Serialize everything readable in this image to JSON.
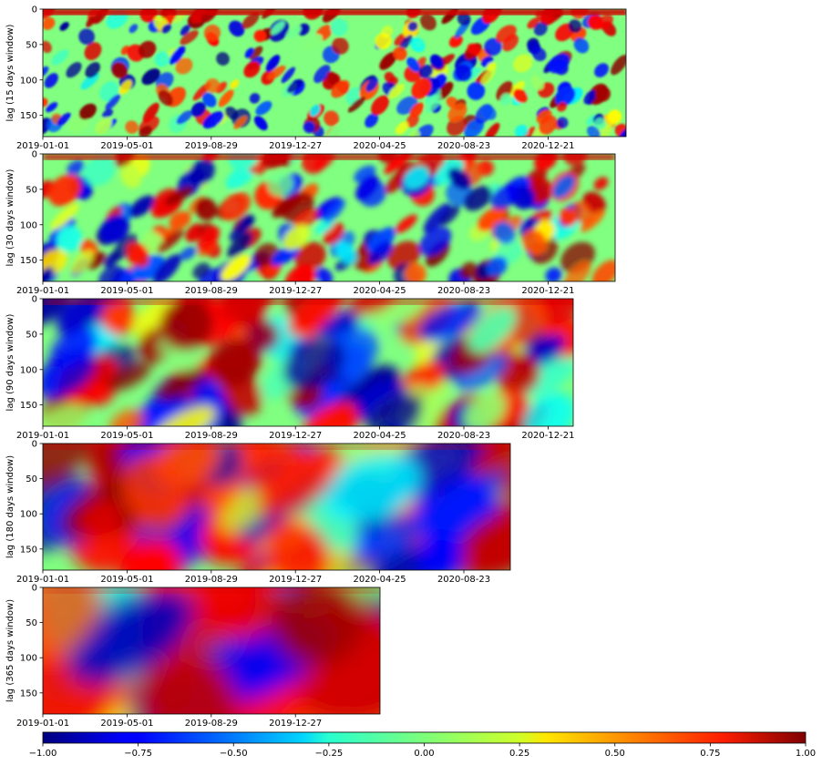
{
  "chart_data": [
    {
      "type": "heatmap",
      "ylabel": "lag (15 days window)",
      "y_ticks": [
        0,
        50,
        100,
        150
      ],
      "ylim": [
        180,
        0
      ],
      "x_tick_labels": [
        "2019-01-01",
        "2019-05-01",
        "2019-08-29",
        "2019-12-27",
        "2020-04-25",
        "2020-08-23",
        "2020-12-21"
      ],
      "xlim": [
        "2019-01-01",
        "2021-04-11"
      ],
      "window_days": 15,
      "colormap": "jet",
      "value_range": [
        -1.0,
        1.0
      ]
    },
    {
      "type": "heatmap",
      "ylabel": "lag (30 days window)",
      "y_ticks": [
        0,
        50,
        100,
        150
      ],
      "ylim": [
        180,
        0
      ],
      "x_tick_labels": [
        "2019-01-01",
        "2019-05-01",
        "2019-08-29",
        "2019-12-27",
        "2020-04-25",
        "2020-08-23",
        "2020-12-21"
      ],
      "xlim": [
        "2019-01-01",
        "2021-03-27"
      ],
      "window_days": 30,
      "colormap": "jet",
      "value_range": [
        -1.0,
        1.0
      ]
    },
    {
      "type": "heatmap",
      "ylabel": "lag (90 days window)",
      "y_ticks": [
        0,
        50,
        100,
        150
      ],
      "ylim": [
        180,
        0
      ],
      "x_tick_labels": [
        "2019-01-01",
        "2019-05-01",
        "2019-08-29",
        "2019-12-27",
        "2020-04-25",
        "2020-08-23",
        "2020-12-21"
      ],
      "xlim": [
        "2019-01-01",
        "2021-01-26"
      ],
      "window_days": 90,
      "colormap": "jet",
      "value_range": [
        -1.0,
        1.0
      ]
    },
    {
      "type": "heatmap",
      "ylabel": "lag (180 days window)",
      "y_ticks": [
        0,
        50,
        100,
        150
      ],
      "ylim": [
        180,
        0
      ],
      "x_tick_labels": [
        "2019-01-01",
        "2019-05-01",
        "2019-08-29",
        "2019-12-27",
        "2020-04-25",
        "2020-08-23"
      ],
      "xlim": [
        "2019-01-01",
        "2020-10-28"
      ],
      "window_days": 180,
      "colormap": "jet",
      "value_range": [
        -1.0,
        1.0
      ]
    },
    {
      "type": "heatmap",
      "ylabel": "lag (365 days window)",
      "y_ticks": [
        0,
        50,
        100,
        150
      ],
      "ylim": [
        180,
        0
      ],
      "x_tick_labels": [
        "2019-01-01",
        "2019-05-01",
        "2019-08-29",
        "2019-12-27"
      ],
      "xlim": [
        "2019-01-01",
        "2020-04-25"
      ],
      "window_days": 365,
      "colormap": "jet",
      "value_range": [
        -1.0,
        1.0
      ]
    }
  ],
  "colorbar": {
    "range": [
      -1.0,
      1.0
    ],
    "tick_values": [
      -1.0,
      -0.75,
      -0.5,
      -0.25,
      0.0,
      0.25,
      0.5,
      0.75,
      1.0
    ],
    "tick_labels": [
      "−1.00",
      "−0.75",
      "−0.50",
      "−0.25",
      "0.00",
      "0.25",
      "0.50",
      "0.75",
      "1.00"
    ],
    "colormap": "jet",
    "orientation": "horizontal"
  }
}
